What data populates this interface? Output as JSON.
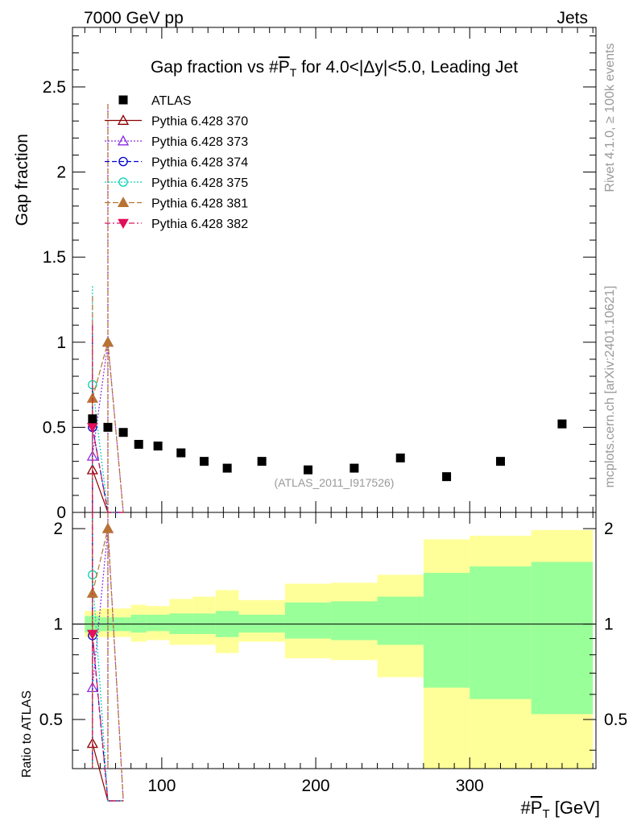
{
  "header": {
    "left": "7000 GeV pp",
    "right": "Jets"
  },
  "side": {
    "rivet": "Rivet 4.1.0, ≥ 100k events",
    "mcplots": "mcplots.cern.ch [arXiv:2401.10621]"
  },
  "colors": {
    "data": "#000000",
    "p370": "#8b0000",
    "p373": "#8a2be2",
    "p374": "#0000cd",
    "p375": "#00d2b4",
    "p381": "#b87333",
    "p382": "#e0105a",
    "band_inner": "#99ff99",
    "band_outer": "#ffff99"
  },
  "chart_data": {
    "type": "scatter",
    "title": "Gap fraction vs #P_T for 4.0<|Δy|<5.0, Leading Jet",
    "title_parts": {
      "pre": "Gap fraction vs #",
      "sym": "P",
      "sub": "T",
      "post": " for 4.0<|Δy|<5.0, Leading Jet"
    },
    "analysis_tag": "(ATLAS_2011_I917526)",
    "ylabel": "Gap fraction",
    "ratio_ylabel": "Ratio to ATLAS",
    "xlabel": {
      "pre": "#",
      "sym": "P",
      "sub": "T",
      "post": " [GeV]"
    },
    "xlim": [
      42,
      382
    ],
    "ylim": [
      0,
      2.85
    ],
    "ratio_ylim": [
      0.35,
      2.25
    ],
    "xticks": [
      100,
      200,
      300
    ],
    "yticks_main": [
      {
        "v": 0,
        "label": "0"
      },
      {
        "v": 0.5,
        "label": "0.5"
      },
      {
        "v": 1,
        "label": "1"
      },
      {
        "v": 1.5,
        "label": "1.5"
      },
      {
        "v": 2,
        "label": "2"
      },
      {
        "v": 2.5,
        "label": "2.5"
      }
    ],
    "yticks_ratio": [
      {
        "v": 0.5,
        "label": "0.5"
      },
      {
        "v": 1,
        "label": "1"
      },
      {
        "v": 2,
        "label": "2"
      }
    ],
    "data": {
      "name": "ATLAS",
      "x": [
        55,
        65,
        75,
        85,
        97.5,
        112.5,
        127.5,
        142.5,
        165,
        195,
        225,
        255,
        285,
        320,
        360
      ],
      "y": [
        0.55,
        0.5,
        0.47,
        0.4,
        0.39,
        0.35,
        0.3,
        0.26,
        0.3,
        0.25,
        0.26,
        0.32,
        0.21,
        0.3,
        0.52
      ]
    },
    "band": {
      "xedges": [
        50,
        60,
        70,
        80,
        90,
        105,
        120,
        135,
        150,
        180,
        210,
        240,
        270,
        300,
        340,
        380
      ],
      "inner": [
        [
          0.94,
          1.06
        ],
        [
          0.95,
          1.05
        ],
        [
          0.95,
          1.05
        ],
        [
          0.94,
          1.07
        ],
        [
          0.95,
          1.07
        ],
        [
          0.93,
          1.08
        ],
        [
          0.93,
          1.08
        ],
        [
          0.91,
          1.1
        ],
        [
          0.94,
          1.07
        ],
        [
          0.9,
          1.17
        ],
        [
          0.89,
          1.18
        ],
        [
          0.86,
          1.22
        ],
        [
          0.63,
          1.45
        ],
        [
          0.58,
          1.52
        ],
        [
          0.52,
          1.57
        ]
      ],
      "outer": [
        [
          0.91,
          1.1
        ],
        [
          0.91,
          1.12
        ],
        [
          0.91,
          1.12
        ],
        [
          0.88,
          1.15
        ],
        [
          0.89,
          1.14
        ],
        [
          0.86,
          1.2
        ],
        [
          0.86,
          1.22
        ],
        [
          0.81,
          1.28
        ],
        [
          0.88,
          1.19
        ],
        [
          0.78,
          1.34
        ],
        [
          0.77,
          1.35
        ],
        [
          0.68,
          1.43
        ],
        [
          0.25,
          1.85
        ],
        [
          0.25,
          1.9
        ],
        [
          0.25,
          1.98
        ]
      ]
    },
    "series": [
      {
        "name": "Pythia 6.428 370",
        "key": "p370",
        "marker": "triangle-open",
        "dash": "",
        "x": [
          55,
          65,
          75
        ],
        "y": [
          0.25,
          0.0,
          0.0
        ],
        "err": [
          0.6,
          0.0,
          0.0
        ],
        "ratio": [
          0.42,
          0.0,
          0.0
        ]
      },
      {
        "name": "Pythia 6.428 373",
        "key": "p373",
        "marker": "triangle-open",
        "dash": "2,2",
        "x": [
          55,
          65,
          75
        ],
        "y": [
          0.33,
          1.0,
          0.0
        ],
        "err": [
          0.8,
          1.4,
          0.0
        ],
        "ratio": [
          0.63,
          2.0,
          0.0
        ]
      },
      {
        "name": "Pythia 6.428 374",
        "key": "p374",
        "marker": "circle-open",
        "dash": "6,3",
        "x": [
          55,
          65,
          75
        ],
        "y": [
          0.5,
          0.0,
          0.0
        ],
        "err": [
          0.6,
          0.0,
          0.0
        ],
        "ratio": [
          0.92,
          0.0,
          0.0
        ]
      },
      {
        "name": "Pythia 6.428 375",
        "key": "p375",
        "marker": "circle-open",
        "dash": "2,2",
        "x": [
          55,
          65,
          75
        ],
        "y": [
          0.75,
          0.0,
          0.0
        ],
        "err": [
          0.58,
          0.0,
          0.0
        ],
        "ratio": [
          1.43,
          0.0,
          0.0
        ]
      },
      {
        "name": "Pythia 6.428 381",
        "key": "p381",
        "marker": "triangle-filled",
        "dash": "7,3",
        "x": [
          55,
          65,
          75
        ],
        "y": [
          0.67,
          1.0,
          0.0
        ],
        "err": [
          0.6,
          1.4,
          0.0
        ],
        "ratio": [
          1.25,
          2.0,
          0.0
        ]
      },
      {
        "name": "Pythia 6.428 382",
        "key": "p382",
        "marker": "triangle-down-filled",
        "dash": "7,3,2,3",
        "x": [
          55,
          65,
          75
        ],
        "y": [
          0.5,
          0.0,
          0.0
        ],
        "err": [
          0.6,
          0.0,
          0.0
        ],
        "ratio": [
          0.93,
          0.0,
          0.0
        ]
      }
    ]
  }
}
